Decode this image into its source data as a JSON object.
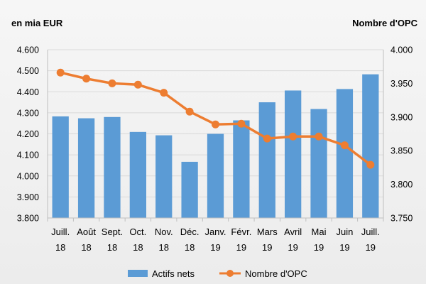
{
  "chart_data": {
    "type": "bar",
    "left_axis_unit": "en mia EUR",
    "right_axis_unit": "Nombre d'OPC",
    "categories": [
      [
        "Juill.",
        "18"
      ],
      [
        "Août",
        "18"
      ],
      [
        "Sept.",
        "18"
      ],
      [
        "Oct.",
        "18"
      ],
      [
        "Nov.",
        "18"
      ],
      [
        "Déc.",
        "18"
      ],
      [
        "Janv.",
        "19"
      ],
      [
        "Févr.",
        "19"
      ],
      [
        "Mars",
        "19"
      ],
      [
        "Avril",
        "19"
      ],
      [
        "Mai",
        "19"
      ],
      [
        "Juin",
        "19"
      ],
      [
        "Juill.",
        "19"
      ]
    ],
    "left_ticks": [
      "3.800",
      "3.900",
      "4.000",
      "4.100",
      "4.200",
      "4.300",
      "4.400",
      "4.500",
      "4.600"
    ],
    "right_ticks": [
      "3.750",
      "3.800",
      "3.850",
      "3.900",
      "3.950",
      "4.000"
    ],
    "ylim_left": [
      3800,
      4600
    ],
    "ylim_right": [
      3750,
      4000
    ],
    "series": [
      {
        "name": "Actifs nets",
        "type": "bar",
        "axis": "left",
        "color": "#5b9bd5",
        "values": [
          4283,
          4274,
          4280,
          4209,
          4193,
          4067,
          4200,
          4264,
          4350,
          4406,
          4318,
          4413,
          4483
        ]
      },
      {
        "name": "Nombre d'OPC",
        "type": "line",
        "axis": "right",
        "color": "#ed7d31",
        "values": [
          3966,
          3957,
          3950,
          3948,
          3936,
          3908,
          3889,
          3890,
          3868,
          3871,
          3871,
          3858,
          3829
        ]
      }
    ],
    "grid": true,
    "legend_position": "bottom"
  }
}
